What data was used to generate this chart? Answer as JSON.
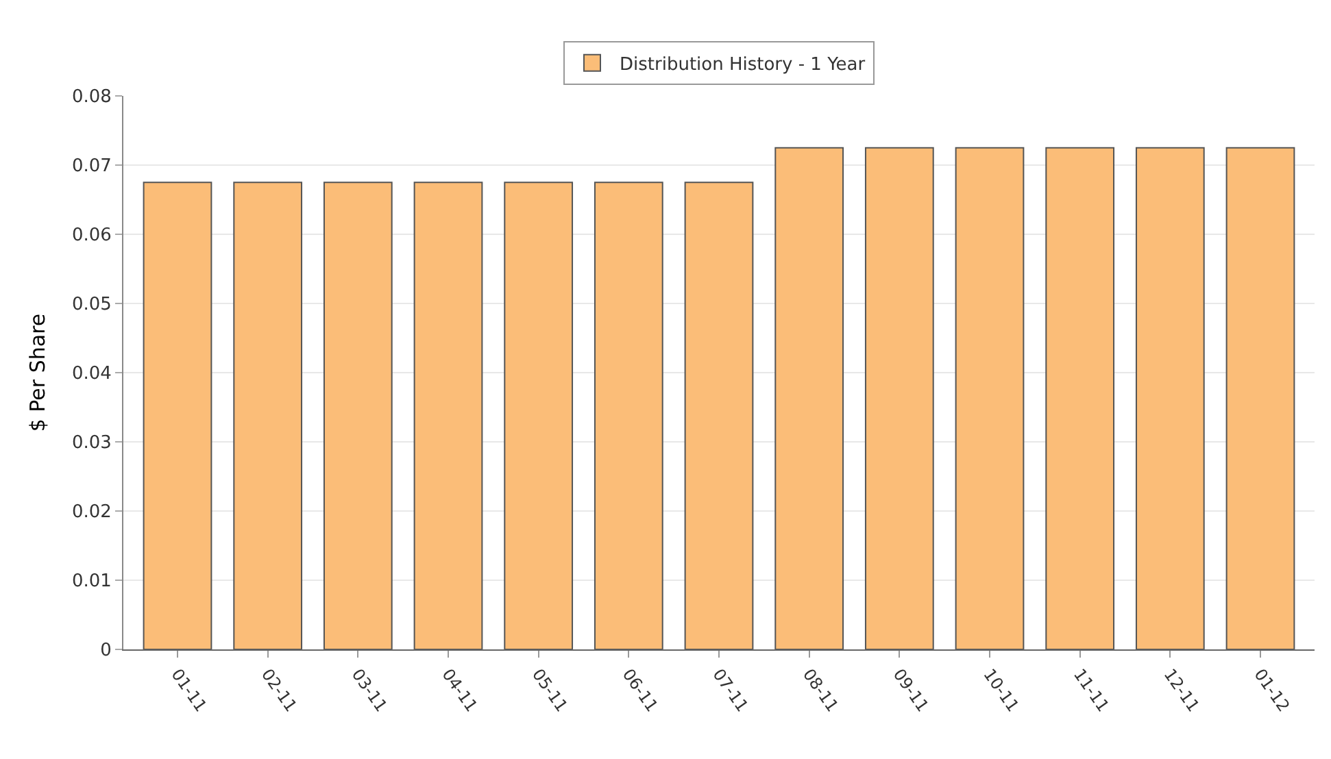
{
  "chart_data": {
    "type": "bar",
    "categories": [
      "01-11",
      "02-11",
      "03-11",
      "04-11",
      "05-11",
      "06-11",
      "07-11",
      "08-11",
      "09-11",
      "10-11",
      "11-11",
      "12-11",
      "01-12"
    ],
    "series": [
      {
        "name": "Distribution History - 1 Year",
        "color": "#fbbd78",
        "values": [
          0.0675,
          0.0675,
          0.0675,
          0.0675,
          0.0675,
          0.0675,
          0.0675,
          0.0725,
          0.0725,
          0.0725,
          0.0725,
          0.0725,
          0.0725
        ]
      }
    ],
    "ylabel": "$ Per Share",
    "ylim": [
      0,
      0.08
    ],
    "yticks": [
      0,
      0.01,
      0.02,
      0.03,
      0.04,
      0.05,
      0.06,
      0.07,
      0.08
    ],
    "grid": "y",
    "legend": "top"
  }
}
